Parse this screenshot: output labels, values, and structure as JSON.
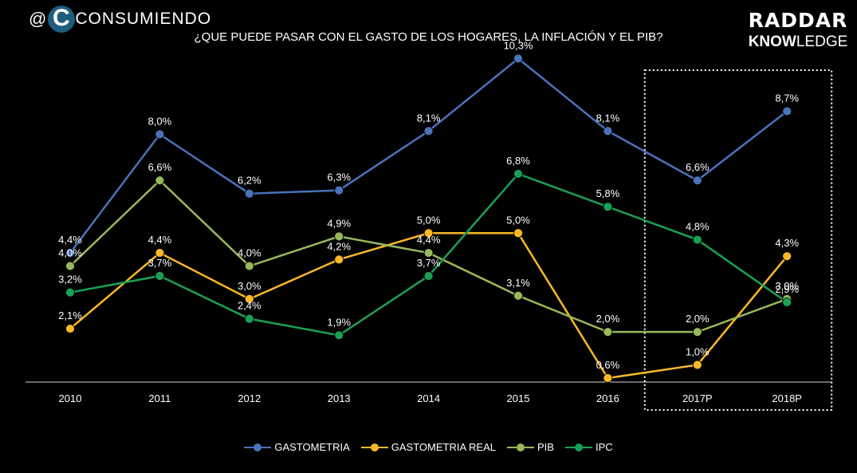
{
  "header": {
    "brand_left": "CONSUMIENDO",
    "brand_left_at": "@",
    "brand_right_top": "RADDAR",
    "brand_right_know": "KNOW",
    "brand_right_ledge": "LEDGE"
  },
  "colors": {
    "background": "#000000",
    "gastometria": "#4a72b8",
    "gastometria_real": "#fbb829",
    "pib": "#98b85c",
    "ipc": "#1aa055",
    "highlight_box": "#ffffff"
  },
  "chart_data": {
    "type": "line",
    "title": "¿QUE PUEDE PASAR CON EL GASTO DE LOS HOGARES, LA INFLACIÓN Y EL PIB?",
    "categories": [
      "2010",
      "2011",
      "2012",
      "2013",
      "2014",
      "2015",
      "2016",
      "2017P",
      "2018P"
    ],
    "highlighted_categories": [
      "2017P",
      "2018P"
    ],
    "grid": false,
    "legend_position": "bottom",
    "series": [
      {
        "name": "GASTOMETRIA",
        "color": "#4a72b8",
        "values": [
          4.4,
          8.0,
          6.2,
          6.3,
          8.1,
          10.3,
          8.1,
          6.6,
          8.7
        ],
        "labels": [
          "4,4%",
          "8,0%",
          "6,2%",
          "6,3%",
          "8,1%",
          "10,3%",
          "8,1%",
          "6,6%",
          "8,7%"
        ]
      },
      {
        "name": "GASTOMETRIA REAL",
        "color": "#fbb829",
        "values": [
          2.1,
          4.4,
          3.0,
          4.2,
          5.0,
          5.0,
          0.6,
          1.0,
          4.3
        ],
        "labels": [
          "2,1%",
          "4,4%",
          "3,0%",
          "4,2%",
          "5,0%",
          "5,0%",
          "0,6%",
          "1,0%",
          "4,3%"
        ]
      },
      {
        "name": "PIB",
        "color": "#98b85c",
        "values": [
          4.0,
          6.6,
          4.0,
          4.9,
          4.4,
          3.1,
          2.0,
          2.0,
          3.0
        ],
        "labels": [
          "4,0%",
          "6,6%",
          "4,0%",
          "4,9%",
          "4,4%",
          "3,1%",
          "2,0%",
          "2,0%",
          "3,0%"
        ]
      },
      {
        "name": "IPC",
        "color": "#1aa055",
        "values": [
          3.2,
          3.7,
          2.4,
          1.9,
          3.7,
          6.8,
          5.8,
          4.8,
          2.9
        ],
        "labels": [
          "3,2%",
          "3,7%",
          "2,4%",
          "1,9%",
          "3,7%",
          "6,8%",
          "5,8%",
          "4,8%",
          "2,9%"
        ]
      }
    ]
  }
}
